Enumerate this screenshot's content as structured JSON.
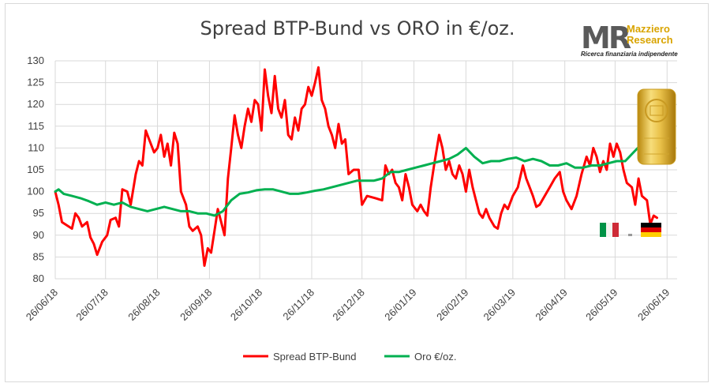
{
  "chart_data": {
    "type": "line",
    "title": "Spread BTP-Bund vs ORO in €/oz.",
    "ylim": [
      80,
      130
    ],
    "yticks": [
      80,
      85,
      90,
      95,
      100,
      105,
      110,
      115,
      120,
      125,
      130
    ],
    "xlim": [
      "2018-06-26",
      "2019-07-02"
    ],
    "xticks": [
      "26/06/18",
      "26/07/18",
      "26/08/18",
      "26/09/18",
      "26/10/18",
      "26/11/18",
      "26/12/18",
      "26/01/19",
      "26/02/19",
      "26/03/19",
      "26/04/19",
      "26/05/19",
      "26/06/19"
    ],
    "grid": true,
    "legend_position": "bottom",
    "series": [
      {
        "name": "Spread BTP-Bund",
        "color": "#ff0000",
        "points": [
          [
            "2018-06-26",
            100
          ],
          [
            "2018-06-28",
            97
          ],
          [
            "2018-06-30",
            93
          ],
          [
            "2018-07-04",
            92
          ],
          [
            "2018-07-06",
            91.5
          ],
          [
            "2018-07-08",
            95
          ],
          [
            "2018-07-10",
            94
          ],
          [
            "2018-07-12",
            92
          ],
          [
            "2018-07-15",
            93
          ],
          [
            "2018-07-17",
            89.5
          ],
          [
            "2018-07-19",
            88
          ],
          [
            "2018-07-21",
            85.5
          ],
          [
            "2018-07-24",
            88.5
          ],
          [
            "2018-07-27",
            90
          ],
          [
            "2018-07-29",
            93.5
          ],
          [
            "2018-08-01",
            94
          ],
          [
            "2018-08-03",
            92
          ],
          [
            "2018-08-05",
            100.5
          ],
          [
            "2018-08-08",
            100
          ],
          [
            "2018-08-10",
            97
          ],
          [
            "2018-08-13",
            104
          ],
          [
            "2018-08-15",
            107
          ],
          [
            "2018-08-17",
            106
          ],
          [
            "2018-08-19",
            114
          ],
          [
            "2018-08-21",
            112
          ],
          [
            "2018-08-24",
            109
          ],
          [
            "2018-08-26",
            110
          ],
          [
            "2018-08-28",
            113
          ],
          [
            "2018-08-30",
            108
          ],
          [
            "2018-09-01",
            111
          ],
          [
            "2018-09-03",
            106
          ],
          [
            "2018-09-05",
            113.5
          ],
          [
            "2018-09-07",
            111
          ],
          [
            "2018-09-09",
            100
          ],
          [
            "2018-09-12",
            97
          ],
          [
            "2018-09-14",
            92
          ],
          [
            "2018-09-16",
            91
          ],
          [
            "2018-09-19",
            92
          ],
          [
            "2018-09-21",
            90
          ],
          [
            "2018-09-23",
            83
          ],
          [
            "2018-09-25",
            87
          ],
          [
            "2018-09-27",
            86
          ],
          [
            "2018-09-29",
            91
          ],
          [
            "2018-10-01",
            96
          ],
          [
            "2018-10-03",
            93
          ],
          [
            "2018-10-05",
            90
          ],
          [
            "2018-10-07",
            103
          ],
          [
            "2018-10-09",
            110
          ],
          [
            "2018-10-11",
            117.5
          ],
          [
            "2018-10-13",
            113
          ],
          [
            "2018-10-15",
            110
          ],
          [
            "2018-10-17",
            115
          ],
          [
            "2018-10-19",
            119
          ],
          [
            "2018-10-21",
            116
          ],
          [
            "2018-10-23",
            121
          ],
          [
            "2018-10-25",
            120
          ],
          [
            "2018-10-27",
            114
          ],
          [
            "2018-10-29",
            128
          ],
          [
            "2018-10-31",
            122
          ],
          [
            "2018-11-02",
            118
          ],
          [
            "2018-11-04",
            126.5
          ],
          [
            "2018-11-06",
            119
          ],
          [
            "2018-11-08",
            117
          ],
          [
            "2018-11-10",
            121
          ],
          [
            "2018-11-12",
            113
          ],
          [
            "2018-11-14",
            112
          ],
          [
            "2018-11-16",
            117
          ],
          [
            "2018-11-18",
            114
          ],
          [
            "2018-11-20",
            119
          ],
          [
            "2018-11-22",
            120
          ],
          [
            "2018-11-24",
            124
          ],
          [
            "2018-11-26",
            122
          ],
          [
            "2018-11-28",
            125
          ],
          [
            "2018-11-30",
            128.5
          ],
          [
            "2018-12-02",
            121
          ],
          [
            "2018-12-04",
            119
          ],
          [
            "2018-12-06",
            115
          ],
          [
            "2018-12-08",
            113
          ],
          [
            "2018-12-10",
            110
          ],
          [
            "2018-12-12",
            115.5
          ],
          [
            "2018-12-14",
            111
          ],
          [
            "2018-12-16",
            112
          ],
          [
            "2018-12-18",
            104
          ],
          [
            "2018-12-21",
            105
          ],
          [
            "2018-12-24",
            105
          ],
          [
            "2018-12-26",
            97
          ],
          [
            "2018-12-29",
            99
          ],
          [
            "2019-01-03",
            98.5
          ],
          [
            "2019-01-07",
            98
          ],
          [
            "2019-01-09",
            106
          ],
          [
            "2019-01-11",
            104
          ],
          [
            "2019-01-13",
            105
          ],
          [
            "2019-01-15",
            102
          ],
          [
            "2019-01-17",
            101
          ],
          [
            "2019-01-19",
            98
          ],
          [
            "2019-01-21",
            104
          ],
          [
            "2019-01-23",
            101
          ],
          [
            "2019-01-25",
            97
          ],
          [
            "2019-01-28",
            95.5
          ],
          [
            "2019-01-30",
            97
          ],
          [
            "2019-02-01",
            95.5
          ],
          [
            "2019-02-03",
            94.5
          ],
          [
            "2019-02-05",
            101
          ],
          [
            "2019-02-07",
            106
          ],
          [
            "2019-02-10",
            113
          ],
          [
            "2019-02-12",
            110
          ],
          [
            "2019-02-14",
            105
          ],
          [
            "2019-02-16",
            107
          ],
          [
            "2019-02-18",
            104
          ],
          [
            "2019-02-20",
            103
          ],
          [
            "2019-02-22",
            106
          ],
          [
            "2019-02-24",
            104
          ],
          [
            "2019-02-26",
            100
          ],
          [
            "2019-02-28",
            105
          ],
          [
            "2019-03-02",
            101
          ],
          [
            "2019-03-04",
            98
          ],
          [
            "2019-03-06",
            95
          ],
          [
            "2019-03-08",
            94
          ],
          [
            "2019-03-10",
            96
          ],
          [
            "2019-03-12",
            94
          ],
          [
            "2019-03-15",
            92
          ],
          [
            "2019-03-17",
            91.5
          ],
          [
            "2019-03-19",
            95
          ],
          [
            "2019-03-21",
            97
          ],
          [
            "2019-03-23",
            96
          ],
          [
            "2019-03-26",
            99
          ],
          [
            "2019-03-29",
            101
          ],
          [
            "2019-04-01",
            106
          ],
          [
            "2019-04-03",
            103
          ],
          [
            "2019-04-05",
            101
          ],
          [
            "2019-04-07",
            99
          ],
          [
            "2019-04-09",
            96.5
          ],
          [
            "2019-04-11",
            97
          ],
          [
            "2019-04-14",
            99
          ],
          [
            "2019-04-17",
            101
          ],
          [
            "2019-04-20",
            103
          ],
          [
            "2019-04-23",
            104.5
          ],
          [
            "2019-04-25",
            100
          ],
          [
            "2019-04-27",
            98
          ],
          [
            "2019-04-30",
            96
          ],
          [
            "2019-05-03",
            99
          ],
          [
            "2019-05-06",
            104
          ],
          [
            "2019-05-09",
            108
          ],
          [
            "2019-05-11",
            106
          ],
          [
            "2019-05-13",
            110
          ],
          [
            "2019-05-15",
            108
          ],
          [
            "2019-05-17",
            104.5
          ],
          [
            "2019-05-19",
            107
          ],
          [
            "2019-05-21",
            105
          ],
          [
            "2019-05-23",
            111
          ],
          [
            "2019-05-25",
            108
          ],
          [
            "2019-05-27",
            111
          ],
          [
            "2019-05-29",
            109
          ],
          [
            "2019-05-31",
            105
          ],
          [
            "2019-06-02",
            102
          ],
          [
            "2019-06-05",
            101
          ],
          [
            "2019-06-07",
            97
          ],
          [
            "2019-06-09",
            103
          ],
          [
            "2019-06-11",
            99
          ],
          [
            "2019-06-14",
            98
          ],
          [
            "2019-06-16",
            92.5
          ],
          [
            "2019-06-18",
            94.5
          ],
          [
            "2019-06-20",
            94
          ]
        ]
      },
      {
        "name": "Oro €/oz.",
        "color": "#00b050",
        "points": [
          [
            "2018-06-26",
            100
          ],
          [
            "2018-06-28",
            100.5
          ],
          [
            "2018-07-01",
            99.5
          ],
          [
            "2018-07-06",
            99
          ],
          [
            "2018-07-11",
            98.5
          ],
          [
            "2018-07-16",
            97.8
          ],
          [
            "2018-07-21",
            97
          ],
          [
            "2018-07-26",
            97.5
          ],
          [
            "2018-07-31",
            97
          ],
          [
            "2018-08-05",
            97.5
          ],
          [
            "2018-08-10",
            96.5
          ],
          [
            "2018-08-15",
            96
          ],
          [
            "2018-08-20",
            95.5
          ],
          [
            "2018-08-25",
            96
          ],
          [
            "2018-08-30",
            96.5
          ],
          [
            "2018-09-04",
            96
          ],
          [
            "2018-09-09",
            95.5
          ],
          [
            "2018-09-14",
            95.5
          ],
          [
            "2018-09-19",
            95
          ],
          [
            "2018-09-24",
            95
          ],
          [
            "2018-09-29",
            94.5
          ],
          [
            "2018-10-04",
            95.5
          ],
          [
            "2018-10-09",
            98
          ],
          [
            "2018-10-14",
            99.5
          ],
          [
            "2018-10-19",
            99.8
          ],
          [
            "2018-10-24",
            100.3
          ],
          [
            "2018-10-29",
            100.5
          ],
          [
            "2018-11-03",
            100.5
          ],
          [
            "2018-11-08",
            100
          ],
          [
            "2018-11-13",
            99.5
          ],
          [
            "2018-11-18",
            99.5
          ],
          [
            "2018-11-23",
            99.8
          ],
          [
            "2018-11-28",
            100.2
          ],
          [
            "2018-12-03",
            100.5
          ],
          [
            "2018-12-08",
            101
          ],
          [
            "2018-12-13",
            101.5
          ],
          [
            "2018-12-18",
            102
          ],
          [
            "2018-12-23",
            102.5
          ],
          [
            "2018-12-28",
            102.5
          ],
          [
            "2019-01-02",
            102.5
          ],
          [
            "2019-01-07",
            103
          ],
          [
            "2019-01-12",
            104.5
          ],
          [
            "2019-01-17",
            104.5
          ],
          [
            "2019-01-22",
            105
          ],
          [
            "2019-01-27",
            105.5
          ],
          [
            "2019-02-01",
            106
          ],
          [
            "2019-02-06",
            106.5
          ],
          [
            "2019-02-11",
            107
          ],
          [
            "2019-02-16",
            107.5
          ],
          [
            "2019-02-21",
            108.5
          ],
          [
            "2019-02-26",
            110
          ],
          [
            "2019-03-03",
            108
          ],
          [
            "2019-03-08",
            106.5
          ],
          [
            "2019-03-13",
            107
          ],
          [
            "2019-03-18",
            107
          ],
          [
            "2019-03-23",
            107.5
          ],
          [
            "2019-03-28",
            107.8
          ],
          [
            "2019-04-02",
            107
          ],
          [
            "2019-04-07",
            107.5
          ],
          [
            "2019-04-12",
            107
          ],
          [
            "2019-04-17",
            106
          ],
          [
            "2019-04-22",
            106
          ],
          [
            "2019-04-27",
            106.5
          ],
          [
            "2019-05-02",
            105.5
          ],
          [
            "2019-05-07",
            105.5
          ],
          [
            "2019-05-12",
            106
          ],
          [
            "2019-05-17",
            106
          ],
          [
            "2019-05-22",
            106.5
          ],
          [
            "2019-05-27",
            107
          ],
          [
            "2019-06-01",
            107
          ],
          [
            "2019-06-06",
            109
          ],
          [
            "2019-06-11",
            111
          ],
          [
            "2019-06-14",
            112
          ],
          [
            "2019-06-16",
            111.5
          ],
          [
            "2019-06-18",
            115
          ],
          [
            "2019-06-20",
            114.5
          ]
        ]
      }
    ]
  },
  "logo": {
    "mark": "MR",
    "name": "Mazziero\nResearch",
    "tagline": "Ricerca finanziaria indipendente"
  },
  "images": {
    "gold_bar": "gold-bar",
    "flags": [
      "italy-flag",
      "germany-flag"
    ]
  }
}
